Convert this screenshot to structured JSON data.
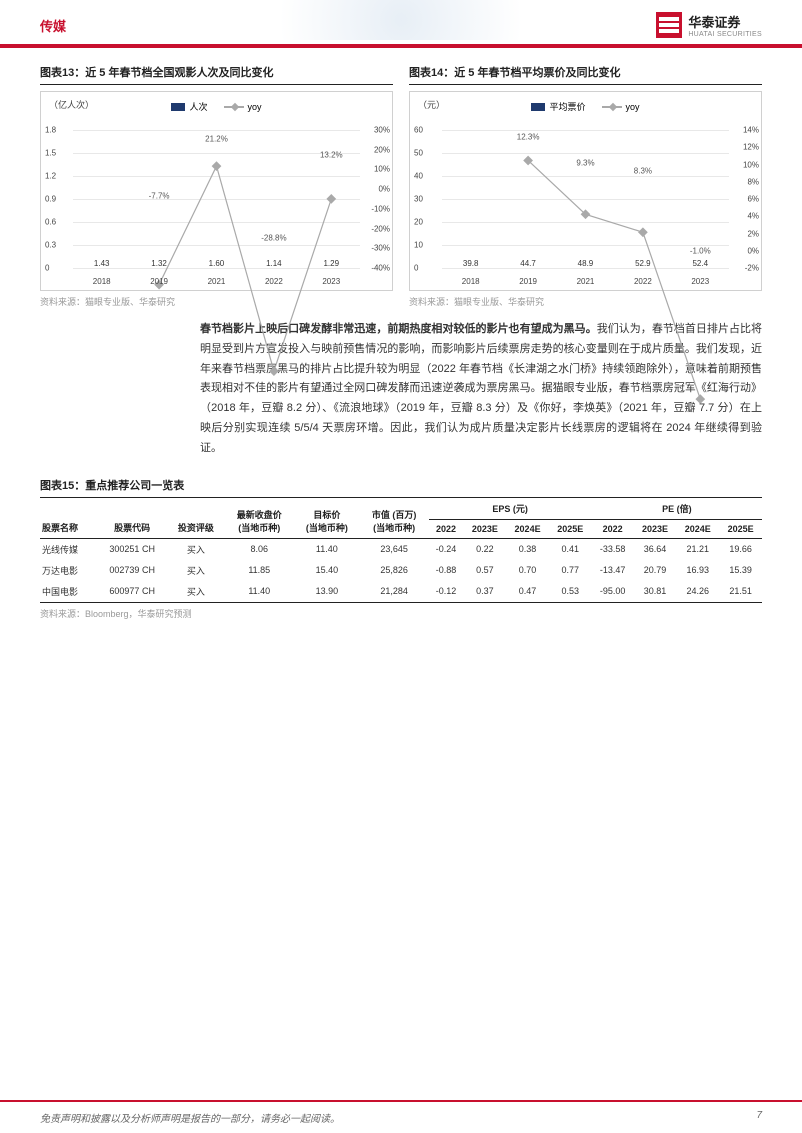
{
  "header": {
    "sector": "传媒",
    "brand_cn": "华泰证券",
    "brand_en": "HUATAI SECURITIES"
  },
  "chart13": {
    "title": "图表13：近 5 年春节档全国观影人次及同比变化",
    "type": "bar+line",
    "y1_unit": "（亿人次）",
    "legend_bar": "人次",
    "legend_line": "yoy",
    "bar_color": "#1f3a6e",
    "line_color": "#a9a9a9",
    "grid_color": "#e8e8e8",
    "y1_ticks": [
      "0",
      "0.3",
      "0.6",
      "0.9",
      "1.2",
      "1.5",
      "1.8"
    ],
    "y1_max": 1.8,
    "y2_ticks": [
      "-40%",
      "-30%",
      "-20%",
      "-10%",
      "0%",
      "10%",
      "20%",
      "30%"
    ],
    "y2_min": -40,
    "y2_max": 30,
    "categories": [
      "2018",
      "2019",
      "2021",
      "2022",
      "2023"
    ],
    "bar_values": [
      1.43,
      1.32,
      1.6,
      1.14,
      1.29
    ],
    "bar_labels": [
      "1.43",
      "1.32",
      "1.60",
      "1.14",
      "1.29"
    ],
    "line_values": [
      null,
      -7.7,
      21.2,
      -28.8,
      13.2
    ],
    "line_labels": [
      "",
      "-7.7%",
      "21.2%",
      "-28.8%",
      "13.2%"
    ],
    "source": "资料来源：猫眼专业版、华泰研究"
  },
  "chart14": {
    "title": "图表14：近 5 年春节档平均票价及同比变化",
    "type": "bar+line",
    "y1_unit": "（元）",
    "legend_bar": "平均票价",
    "legend_line": "yoy",
    "bar_color": "#1f3a6e",
    "line_color": "#a9a9a9",
    "grid_color": "#e8e8e8",
    "y1_ticks": [
      "0",
      "10",
      "20",
      "30",
      "40",
      "50",
      "60"
    ],
    "y1_max": 60,
    "y2_ticks": [
      "-2%",
      "0%",
      "2%",
      "4%",
      "6%",
      "8%",
      "10%",
      "12%",
      "14%"
    ],
    "y2_min": -2,
    "y2_max": 14,
    "categories": [
      "2018",
      "2019",
      "2021",
      "2022",
      "2023"
    ],
    "bar_values": [
      39.8,
      44.7,
      48.9,
      52.9,
      52.4
    ],
    "bar_labels": [
      "39.8",
      "44.7",
      "48.9",
      "52.9",
      "52.4"
    ],
    "line_values": [
      null,
      12.3,
      9.3,
      8.3,
      -1.0
    ],
    "line_labels": [
      "",
      "12.3%",
      "9.3%",
      "8.3%",
      "-1.0%"
    ],
    "source": "资料来源：猫眼专业版、华泰研究"
  },
  "body_para": "春节档影片上映后口碑发酵非常迅速，前期热度相对较低的影片也有望成为黑马。我们认为，春节档首日排片占比将明显受到片方宣发投入与映前预售情况的影响，而影响影片后续票房走势的核心变量则在于成片质量。我们发现，近年来春节档票房黑马的排片占比提升较为明显（2022 年春节档《长津湖之水门桥》持续领跑除外），意味着前期预售表现相对不佳的影片有望通过全网口碑发酵而迅速逆袭成为票房黑马。据猫眼专业版，春节档票房冠军《红海行动》（2018 年，豆瓣 8.2 分）、《流浪地球》（2019 年，豆瓣 8.3 分）及《你好，李焕英》（2021 年，豆瓣 7.7 分）在上映后分别实现连续 5/5/4 天票房环增。因此，我们认为成片质量决定影片长线票房的逻辑将在 2024 年继续得到验证。",
  "body_bold_prefix": "春节档影片上映后口碑发酵非常迅速，前期热度相对较低的影片也有望成为黑马。",
  "table15": {
    "title": "图表15：重点推荐公司一览表",
    "headers_top": {
      "name": "股票名称",
      "code": "股票代码",
      "rating": "投资评级",
      "price": "最新收盘价",
      "price_sub": "(当地币种)",
      "target": "目标价",
      "target_sub": "(当地币种)",
      "mcap": "市值 (百万)",
      "mcap_sub": "(当地币种)",
      "eps_group": "EPS (元)",
      "pe_group": "PE (倍)"
    },
    "year_cols": [
      "2022",
      "2023E",
      "2024E",
      "2025E"
    ],
    "rows": [
      {
        "name": "光线传媒",
        "code": "300251 CH",
        "rating": "买入",
        "price": "8.06",
        "target": "11.40",
        "mcap": "23,645",
        "eps": [
          "-0.24",
          "0.22",
          "0.38",
          "0.41"
        ],
        "pe": [
          "-33.58",
          "36.64",
          "21.21",
          "19.66"
        ]
      },
      {
        "name": "万达电影",
        "code": "002739 CH",
        "rating": "买入",
        "price": "11.85",
        "target": "15.40",
        "mcap": "25,826",
        "eps": [
          "-0.88",
          "0.57",
          "0.70",
          "0.77"
        ],
        "pe": [
          "-13.47",
          "20.79",
          "16.93",
          "15.39"
        ]
      },
      {
        "name": "中国电影",
        "code": "600977 CH",
        "rating": "买入",
        "price": "11.40",
        "target": "13.90",
        "mcap": "21,284",
        "eps": [
          "-0.12",
          "0.37",
          "0.47",
          "0.53"
        ],
        "pe": [
          "-95.00",
          "30.81",
          "24.26",
          "21.51"
        ]
      }
    ],
    "source": "资料来源：Bloomberg，华泰研究预测"
  },
  "footer": {
    "disclaimer": "免责声明和披露以及分析师声明是报告的一部分，请务必一起阅读。",
    "page": "7"
  }
}
